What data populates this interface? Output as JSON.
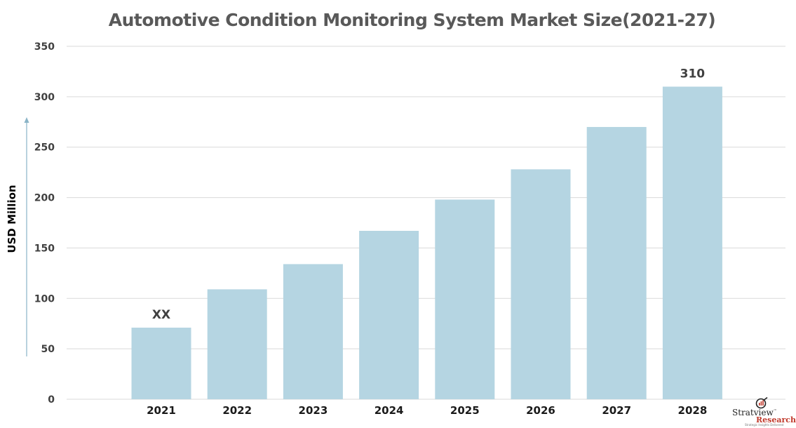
{
  "chart_data": {
    "type": "bar",
    "title": "Automotive Condition Monitoring System Market Size(2021-27)",
    "xlabel": "",
    "ylabel": "USD Million",
    "categories": [
      "2021",
      "2022",
      "2023",
      "2024",
      "2025",
      "2026",
      "2027",
      "2028"
    ],
    "values": [
      71,
      109,
      134,
      167,
      198,
      228,
      270,
      310
    ],
    "data_labels": [
      {
        "category": "2021",
        "text": "XX"
      },
      {
        "category": "2028",
        "text": "310"
      }
    ],
    "yticks": [
      "0",
      "50",
      "100",
      "150",
      "200",
      "250",
      "300",
      "350"
    ],
    "ylim": [
      0,
      350
    ],
    "grid": true,
    "legend": "none",
    "bar_color": "#b5d5e2",
    "grid_color": "#d9d9d9",
    "arrow_color": "#8ab4c7"
  },
  "logo": {
    "name": "Stratview",
    "tm": "™",
    "sub": "Research",
    "tagline": "Strategic Insights Delivered"
  }
}
